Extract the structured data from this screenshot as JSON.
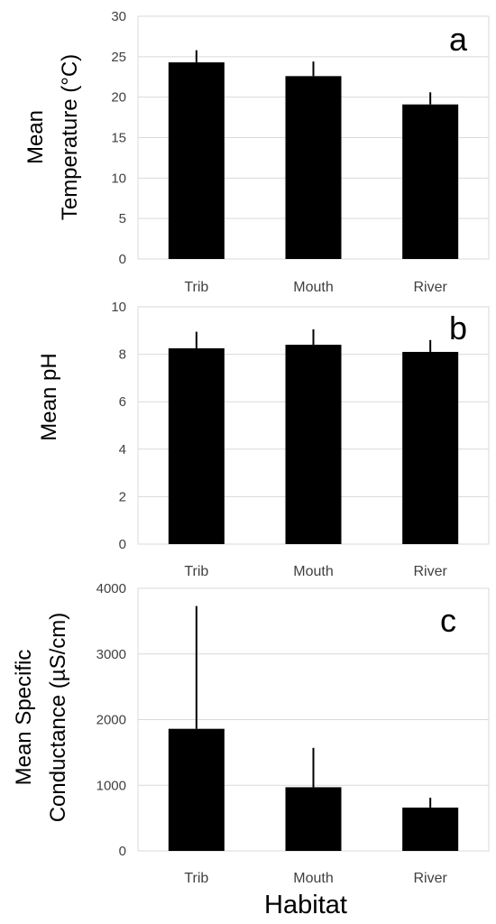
{
  "figure": {
    "xlabel": "Habitat"
  },
  "chart_data": [
    {
      "type": "bar",
      "panel_label": "a",
      "categories": [
        "Trib",
        "Mouth",
        "River"
      ],
      "values": [
        24.3,
        22.6,
        19.1
      ],
      "error": [
        1.5,
        1.8,
        1.5
      ],
      "ylabel_lines": [
        "Mean",
        "Temperature (°C)"
      ],
      "ylim": [
        0,
        30
      ],
      "yticks": [
        0,
        5,
        10,
        15,
        20,
        25,
        30
      ],
      "grid": true,
      "legend": "none",
      "bar_color": "#000000"
    },
    {
      "type": "bar",
      "panel_label": "b",
      "categories": [
        "Trib",
        "Mouth",
        "River"
      ],
      "values": [
        8.25,
        8.4,
        8.1
      ],
      "error": [
        0.7,
        0.65,
        0.5
      ],
      "ylabel_lines": [
        "Mean pH"
      ],
      "ylim": [
        0,
        10
      ],
      "yticks": [
        0,
        2,
        4,
        6,
        8,
        10
      ],
      "grid": true,
      "legend": "none",
      "bar_color": "#000000"
    },
    {
      "type": "bar",
      "panel_label": "c",
      "categories": [
        "Trib",
        "Mouth",
        "River"
      ],
      "values": [
        1860,
        970,
        660
      ],
      "error": [
        1870,
        600,
        150
      ],
      "ylabel_lines": [
        "Mean Specific",
        "Conductance (µS/cm)"
      ],
      "ylim": [
        0,
        4000
      ],
      "yticks": [
        0,
        1000,
        2000,
        3000,
        4000
      ],
      "grid": true,
      "legend": "none",
      "bar_color": "#000000"
    }
  ]
}
